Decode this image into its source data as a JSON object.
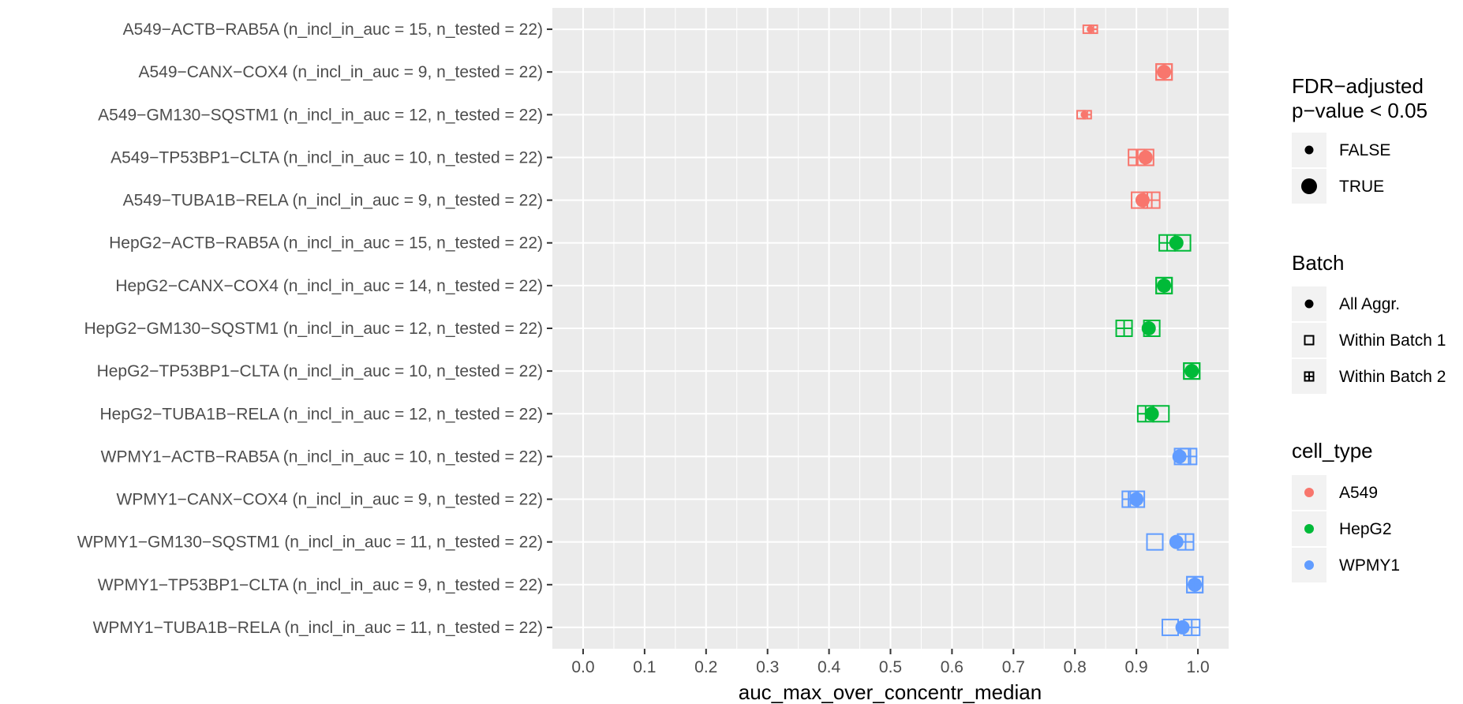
{
  "chart_data": {
    "type": "scatter",
    "xlabel": "auc_max_over_concentr_median",
    "ylabel": "",
    "xlim": [
      -0.05,
      1.05
    ],
    "x_ticks": [
      "0.0",
      "0.1",
      "0.2",
      "0.3",
      "0.4",
      "0.5",
      "0.6",
      "0.7",
      "0.8",
      "0.9",
      "1.0"
    ],
    "grid": true,
    "legend_position": "right",
    "categories": [
      "A549−ACTB−RAB5A (n_incl_in_auc = 15, n_tested = 22)",
      "A549−CANX−COX4 (n_incl_in_auc = 9, n_tested = 22)",
      "A549−GM130−SQSTM1 (n_incl_in_auc = 12, n_tested = 22)",
      "A549−TP53BP1−CLTA (n_incl_in_auc = 10, n_tested = 22)",
      "A549−TUBA1B−RELA (n_incl_in_auc = 9, n_tested = 22)",
      "HepG2−ACTB−RAB5A (n_incl_in_auc = 15, n_tested = 22)",
      "HepG2−CANX−COX4 (n_incl_in_auc = 14, n_tested = 22)",
      "HepG2−GM130−SQSTM1 (n_incl_in_auc = 12, n_tested = 22)",
      "HepG2−TP53BP1−CLTA (n_incl_in_auc = 10, n_tested = 22)",
      "HepG2−TUBA1B−RELA (n_incl_in_auc = 12, n_tested = 22)",
      "WPMY1−ACTB−RAB5A (n_incl_in_auc = 10, n_tested = 22)",
      "WPMY1−CANX−COX4 (n_incl_in_auc = 9, n_tested = 22)",
      "WPMY1−GM130−SQSTM1 (n_incl_in_auc = 11, n_tested = 22)",
      "WPMY1−TP53BP1−CLTA (n_incl_in_auc = 9, n_tested = 22)",
      "WPMY1−TUBA1B−RELA (n_incl_in_auc = 11, n_tested = 22)"
    ],
    "cell_type_colors": {
      "A549": "#F8766D",
      "HepG2": "#00BA38",
      "WPMY1": "#619CFF"
    },
    "series": [
      {
        "name": "All Aggr.",
        "shape": "circle",
        "values": [
          0.825,
          0.945,
          0.815,
          0.915,
          0.91,
          0.965,
          0.945,
          0.92,
          0.99,
          0.925,
          0.97,
          0.9,
          0.965,
          0.995,
          0.975
        ],
        "significant": [
          false,
          true,
          false,
          true,
          true,
          true,
          true,
          true,
          true,
          true,
          true,
          true,
          true,
          true,
          true
        ]
      },
      {
        "name": "Within Batch 1",
        "shape": "square",
        "values": [
          0.82,
          0.945,
          0.81,
          0.915,
          0.905,
          0.975,
          0.945,
          0.925,
          0.99,
          0.94,
          0.975,
          0.9,
          0.93,
          0.995,
          0.955
        ],
        "significant": [
          false,
          true,
          false,
          true,
          true,
          true,
          true,
          true,
          true,
          true,
          true,
          true,
          true,
          true,
          true
        ]
      },
      {
        "name": "Within Batch 2",
        "shape": "square-plus",
        "values": [
          0.83,
          0.945,
          0.82,
          0.9,
          0.925,
          0.95,
          0.945,
          0.88,
          0.99,
          0.915,
          0.985,
          0.89,
          0.98,
          0.995,
          0.99
        ],
        "significant": [
          false,
          true,
          false,
          true,
          true,
          true,
          true,
          true,
          true,
          true,
          true,
          true,
          true,
          true,
          true
        ]
      }
    ],
    "legends": [
      {
        "title": "FDR−adjusted\np−value < 0.05",
        "items": [
          {
            "label": "FALSE",
            "symbol": "circle-small"
          },
          {
            "label": "TRUE",
            "symbol": "circle-large"
          }
        ]
      },
      {
        "title": "Batch",
        "items": [
          {
            "label": "All Aggr.",
            "symbol": "circle"
          },
          {
            "label": "Within Batch 1",
            "symbol": "square"
          },
          {
            "label": "Within Batch 2",
            "symbol": "square-plus"
          }
        ]
      },
      {
        "title": "cell_type",
        "items": [
          {
            "label": "A549",
            "color": "#F8766D"
          },
          {
            "label": "HepG2",
            "color": "#00BA38"
          },
          {
            "label": "WPMY1",
            "color": "#619CFF"
          }
        ]
      }
    ]
  }
}
